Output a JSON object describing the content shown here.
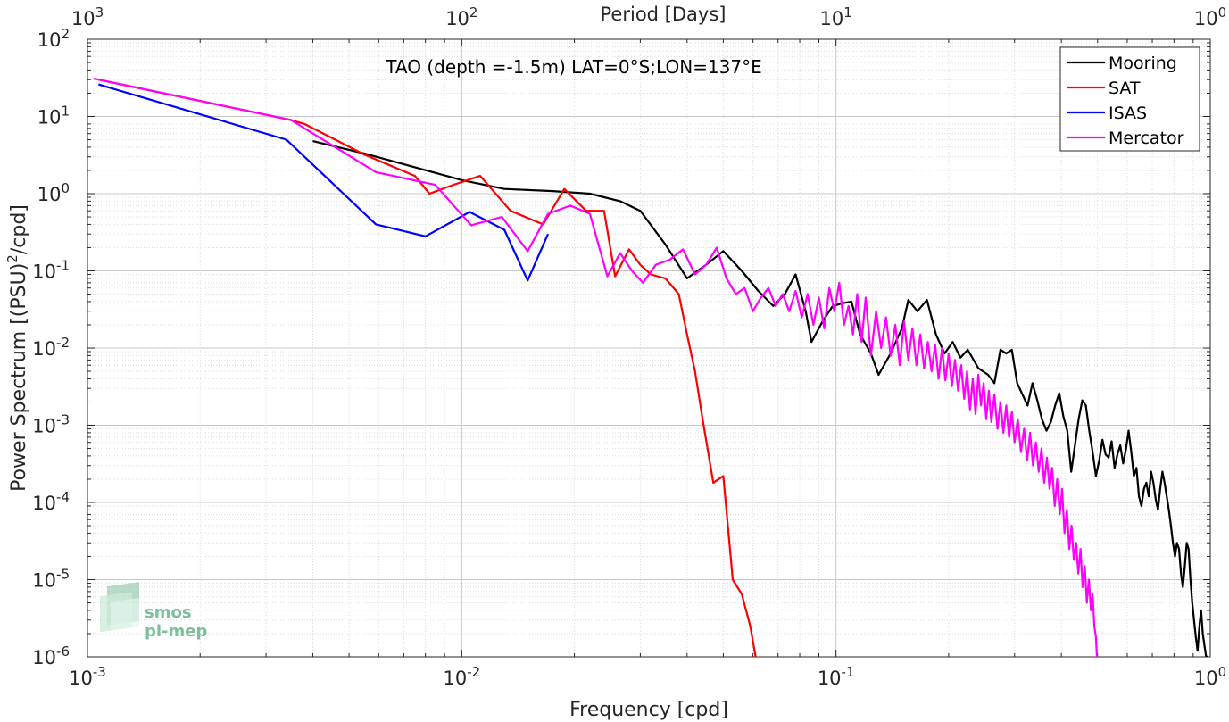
{
  "chart_data": {
    "type": "line",
    "title": "TAO (depth =-1.5m) LAT=0°S;LON=137°E",
    "xlabel": "Frequency [cpd]",
    "ylabel": "Power Spectrum [(PSU)²/cpd]",
    "ylabel_main": "Power Spectrum [(PSU)",
    "ylabel_sup": "2",
    "ylabel_tail": "/cpd]",
    "top_xlabel": "Period [Days]",
    "xscale": "log",
    "yscale": "log",
    "xlim": [
      0.001,
      1
    ],
    "ylim": [
      1e-06,
      100
    ],
    "grid": true,
    "legend_position": "top-right",
    "x_ticks": [
      {
        "value": 0.001,
        "base": "10",
        "exp": "-3"
      },
      {
        "value": 0.01,
        "base": "10",
        "exp": "-2"
      },
      {
        "value": 0.1,
        "base": "10",
        "exp": "-1"
      },
      {
        "value": 1,
        "base": "10",
        "exp": "0"
      }
    ],
    "top_ticks": [
      {
        "freq": 0.001,
        "base": "10",
        "exp": "3"
      },
      {
        "freq": 0.01,
        "base": "10",
        "exp": "2"
      },
      {
        "freq": 0.1,
        "base": "10",
        "exp": "1"
      },
      {
        "freq": 1,
        "base": "10",
        "exp": "0"
      }
    ],
    "y_ticks": [
      {
        "value": 100,
        "base": "10",
        "exp": "2"
      },
      {
        "value": 10,
        "base": "10",
        "exp": "1"
      },
      {
        "value": 1,
        "base": "10",
        "exp": "0"
      },
      {
        "value": 0.1,
        "base": "10",
        "exp": "-1"
      },
      {
        "value": 0.01,
        "base": "10",
        "exp": "-2"
      },
      {
        "value": 0.001,
        "base": "10",
        "exp": "-3"
      },
      {
        "value": 0.0001,
        "base": "10",
        "exp": "-4"
      },
      {
        "value": 1e-05,
        "base": "10",
        "exp": "-5"
      },
      {
        "value": 1e-06,
        "base": "10",
        "exp": "-6"
      }
    ],
    "series": [
      {
        "name": "Mooring",
        "color": "#000000",
        "points": [
          [
            0.004,
            4.8
          ],
          [
            0.0055,
            3.3
          ],
          [
            0.0075,
            2.2
          ],
          [
            0.01,
            1.5
          ],
          [
            0.013,
            1.15
          ],
          [
            0.0175,
            1.08
          ],
          [
            0.022,
            1.0
          ],
          [
            0.0265,
            0.8
          ],
          [
            0.03,
            0.6
          ],
          [
            0.035,
            0.22
          ],
          [
            0.04,
            0.08
          ],
          [
            0.045,
            0.12
          ],
          [
            0.05,
            0.18
          ],
          [
            0.056,
            0.1
          ],
          [
            0.062,
            0.055
          ],
          [
            0.068,
            0.035
          ],
          [
            0.073,
            0.05
          ],
          [
            0.078,
            0.09
          ],
          [
            0.083,
            0.03
          ],
          [
            0.086,
            0.012
          ],
          [
            0.092,
            0.022
          ],
          [
            0.098,
            0.035
          ],
          [
            0.104,
            0.038
          ],
          [
            0.11,
            0.04
          ],
          [
            0.116,
            0.015
          ],
          [
            0.124,
            0.0085
          ],
          [
            0.13,
            0.0045
          ],
          [
            0.14,
            0.0085
          ],
          [
            0.15,
            0.018
          ],
          [
            0.156,
            0.042
          ],
          [
            0.165,
            0.03
          ],
          [
            0.175,
            0.042
          ],
          [
            0.185,
            0.015
          ],
          [
            0.195,
            0.0085
          ],
          [
            0.205,
            0.012
          ],
          [
            0.215,
            0.0075
          ],
          [
            0.225,
            0.0095
          ],
          [
            0.24,
            0.0055
          ],
          [
            0.255,
            0.0045
          ],
          [
            0.265,
            0.0035
          ],
          [
            0.275,
            0.0095
          ],
          [
            0.285,
            0.0085
          ],
          [
            0.295,
            0.0095
          ],
          [
            0.305,
            0.0035
          ],
          [
            0.315,
            0.0025
          ],
          [
            0.325,
            0.0018
          ],
          [
            0.335,
            0.0035
          ],
          [
            0.345,
            0.0021
          ],
          [
            0.355,
            0.0012
          ],
          [
            0.365,
            0.00085
          ],
          [
            0.375,
            0.0011
          ],
          [
            0.385,
            0.0018
          ],
          [
            0.395,
            0.0026
          ],
          [
            0.405,
            0.0013
          ],
          [
            0.415,
            0.00085
          ],
          [
            0.425,
            0.00025
          ],
          [
            0.435,
            0.00055
          ],
          [
            0.445,
            0.0012
          ],
          [
            0.455,
            0.0021
          ],
          [
            0.465,
            0.0018
          ],
          [
            0.475,
            0.00085
          ],
          [
            0.485,
            0.00045
          ],
          [
            0.495,
            0.00022
          ],
          [
            0.505,
            0.00035
          ],
          [
            0.515,
            0.00065
          ],
          [
            0.525,
            0.00042
          ],
          [
            0.535,
            0.00038
          ],
          [
            0.545,
            0.00062
          ],
          [
            0.555,
            0.00028
          ],
          [
            0.565,
            0.00042
          ],
          [
            0.575,
            0.00055
          ],
          [
            0.585,
            0.00032
          ],
          [
            0.595,
            0.00048
          ],
          [
            0.605,
            0.00085
          ],
          [
            0.615,
            0.00045
          ],
          [
            0.625,
            0.00022
          ],
          [
            0.635,
            0.00028
          ],
          [
            0.645,
            0.00012
          ],
          [
            0.655,
            9e-05
          ],
          [
            0.665,
            0.00015
          ],
          [
            0.675,
            0.00018
          ],
          [
            0.685,
            0.00012
          ],
          [
            0.695,
            0.00025
          ],
          [
            0.705,
            0.00018
          ],
          [
            0.715,
            0.00011
          ],
          [
            0.725,
            8e-05
          ],
          [
            0.735,
            0.00015
          ],
          [
            0.745,
            0.00025
          ],
          [
            0.755,
            0.00018
          ],
          [
            0.765,
            0.00012
          ],
          [
            0.775,
            8e-05
          ],
          [
            0.785,
            5e-05
          ],
          [
            0.795,
            3e-05
          ],
          [
            0.805,
            2e-05
          ],
          [
            0.815,
            3e-05
          ],
          [
            0.825,
            2.5e-05
          ],
          [
            0.835,
            1.2e-05
          ],
          [
            0.845,
            8e-06
          ],
          [
            0.855,
            1.5e-05
          ],
          [
            0.865,
            3e-05
          ],
          [
            0.875,
            2.5e-05
          ],
          [
            0.885,
            1e-05
          ],
          [
            0.895,
            5e-06
          ],
          [
            0.905,
            3e-06
          ],
          [
            0.915,
            1.8e-06
          ],
          [
            0.925,
            1.2e-06
          ],
          [
            0.935,
            2.5e-06
          ],
          [
            0.945,
            4e-06
          ],
          [
            0.955,
            2e-06
          ],
          [
            0.965,
            1.4e-06
          ],
          [
            0.975,
            1e-06
          ],
          [
            0.985,
            1e-06
          ]
        ]
      },
      {
        "name": "SAT",
        "color": "#ff0000",
        "points": [
          [
            0.00107,
            30
          ],
          [
            0.0035,
            9
          ],
          [
            0.0038,
            8
          ],
          [
            0.0055,
            3.2
          ],
          [
            0.0075,
            1.7
          ],
          [
            0.0082,
            1.0
          ],
          [
            0.0095,
            1.3
          ],
          [
            0.0112,
            1.7
          ],
          [
            0.0135,
            0.6
          ],
          [
            0.0165,
            0.4
          ],
          [
            0.0188,
            1.15
          ],
          [
            0.0215,
            0.6
          ],
          [
            0.024,
            0.6
          ],
          [
            0.0257,
            0.085
          ],
          [
            0.028,
            0.19
          ],
          [
            0.03,
            0.12
          ],
          [
            0.032,
            0.09
          ],
          [
            0.035,
            0.08
          ],
          [
            0.038,
            0.05
          ],
          [
            0.04,
            0.015
          ],
          [
            0.042,
            0.005
          ],
          [
            0.044,
            0.0012
          ],
          [
            0.047,
            0.00018
          ],
          [
            0.05,
            0.00022
          ],
          [
            0.053,
            1e-05
          ],
          [
            0.056,
            6.5e-06
          ],
          [
            0.059,
            2.5e-06
          ],
          [
            0.061,
            1e-06
          ]
        ]
      },
      {
        "name": "ISAS",
        "color": "#0000ff",
        "points": [
          [
            0.00107,
            26
          ],
          [
            0.0034,
            5
          ],
          [
            0.0059,
            0.4
          ],
          [
            0.008,
            0.28
          ],
          [
            0.0105,
            0.58
          ],
          [
            0.013,
            0.34
          ],
          [
            0.015,
            0.075
          ],
          [
            0.017,
            0.3
          ]
        ]
      },
      {
        "name": "Mercator",
        "color": "#ff00ff",
        "points": [
          [
            0.00104,
            31
          ],
          [
            0.0035,
            9
          ],
          [
            0.0059,
            1.9
          ],
          [
            0.0085,
            1.3
          ],
          [
            0.0106,
            0.39
          ],
          [
            0.0128,
            0.5
          ],
          [
            0.015,
            0.18
          ],
          [
            0.017,
            0.55
          ],
          [
            0.0195,
            0.7
          ],
          [
            0.022,
            0.55
          ],
          [
            0.0245,
            0.085
          ],
          [
            0.0265,
            0.17
          ],
          [
            0.0285,
            0.1
          ],
          [
            0.0305,
            0.07
          ],
          [
            0.033,
            0.12
          ],
          [
            0.036,
            0.14
          ],
          [
            0.039,
            0.19
          ],
          [
            0.042,
            0.09
          ],
          [
            0.045,
            0.12
          ],
          [
            0.048,
            0.2
          ],
          [
            0.051,
            0.08
          ],
          [
            0.054,
            0.05
          ],
          [
            0.057,
            0.06
          ],
          [
            0.06,
            0.03
          ],
          [
            0.063,
            0.045
          ],
          [
            0.066,
            0.06
          ],
          [
            0.069,
            0.035
          ],
          [
            0.072,
            0.05
          ],
          [
            0.075,
            0.03
          ],
          [
            0.078,
            0.055
          ],
          [
            0.081,
            0.025
          ],
          [
            0.084,
            0.05
          ],
          [
            0.087,
            0.02
          ],
          [
            0.09,
            0.045
          ],
          [
            0.093,
            0.018
          ],
          [
            0.096,
            0.06
          ],
          [
            0.099,
            0.03
          ],
          [
            0.102,
            0.07
          ],
          [
            0.105,
            0.02
          ],
          [
            0.108,
            0.035
          ],
          [
            0.111,
            0.015
          ],
          [
            0.114,
            0.05
          ],
          [
            0.117,
            0.012
          ],
          [
            0.12,
            0.045
          ],
          [
            0.124,
            0.008
          ],
          [
            0.128,
            0.03
          ],
          [
            0.132,
            0.01
          ],
          [
            0.136,
            0.025
          ],
          [
            0.14,
            0.008
          ],
          [
            0.144,
            0.02
          ],
          [
            0.148,
            0.006
          ],
          [
            0.152,
            0.022
          ],
          [
            0.156,
            0.007
          ],
          [
            0.16,
            0.018
          ],
          [
            0.164,
            0.006
          ],
          [
            0.168,
            0.015
          ],
          [
            0.172,
            0.0055
          ],
          [
            0.176,
            0.012
          ],
          [
            0.18,
            0.005
          ],
          [
            0.184,
            0.011
          ],
          [
            0.188,
            0.004
          ],
          [
            0.192,
            0.01
          ],
          [
            0.196,
            0.0038
          ],
          [
            0.2,
            0.0085
          ],
          [
            0.204,
            0.0032
          ],
          [
            0.208,
            0.007
          ],
          [
            0.212,
            0.0028
          ],
          [
            0.216,
            0.006
          ],
          [
            0.22,
            0.0022
          ],
          [
            0.224,
            0.005
          ],
          [
            0.228,
            0.0016
          ],
          [
            0.232,
            0.004
          ],
          [
            0.236,
            0.0014
          ],
          [
            0.24,
            0.0045
          ],
          [
            0.244,
            0.0018
          ],
          [
            0.248,
            0.0035
          ],
          [
            0.252,
            0.0012
          ],
          [
            0.256,
            0.0028
          ],
          [
            0.26,
            0.0011
          ],
          [
            0.265,
            0.0025
          ],
          [
            0.27,
            0.0009
          ],
          [
            0.275,
            0.002
          ],
          [
            0.28,
            0.0008
          ],
          [
            0.285,
            0.0018
          ],
          [
            0.29,
            0.0007
          ],
          [
            0.295,
            0.0015
          ],
          [
            0.3,
            0.0006
          ],
          [
            0.306,
            0.0012
          ],
          [
            0.312,
            0.00045
          ],
          [
            0.318,
            0.0009
          ],
          [
            0.324,
            0.00035
          ],
          [
            0.33,
            0.0008
          ],
          [
            0.336,
            0.0003
          ],
          [
            0.342,
            0.0006
          ],
          [
            0.348,
            0.00025
          ],
          [
            0.354,
            0.0005
          ],
          [
            0.36,
            0.00018
          ],
          [
            0.366,
            0.00038
          ],
          [
            0.372,
            0.00015
          ],
          [
            0.378,
            0.00028
          ],
          [
            0.384,
            9e-05
          ],
          [
            0.39,
            0.0002
          ],
          [
            0.396,
            7e-05
          ],
          [
            0.402,
            0.00015
          ],
          [
            0.408,
            4e-05
          ],
          [
            0.414,
            8e-05
          ],
          [
            0.42,
            2.5e-05
          ],
          [
            0.426,
            5e-05
          ],
          [
            0.432,
            1.8e-05
          ],
          [
            0.438,
            3e-05
          ],
          [
            0.444,
            1.2e-05
          ],
          [
            0.45,
            2.5e-05
          ],
          [
            0.456,
            8e-06
          ],
          [
            0.462,
            1.5e-05
          ],
          [
            0.468,
            5e-06
          ],
          [
            0.474,
            1e-05
          ],
          [
            0.48,
            4e-06
          ],
          [
            0.485,
            6.5e-06
          ],
          [
            0.49,
            2.5e-06
          ],
          [
            0.495,
            1.8e-06
          ],
          [
            0.498,
            1e-06
          ]
        ]
      }
    ]
  },
  "logo": {
    "line1": "smos",
    "line2": "pi-mep",
    "color": "#7dbf9a"
  }
}
